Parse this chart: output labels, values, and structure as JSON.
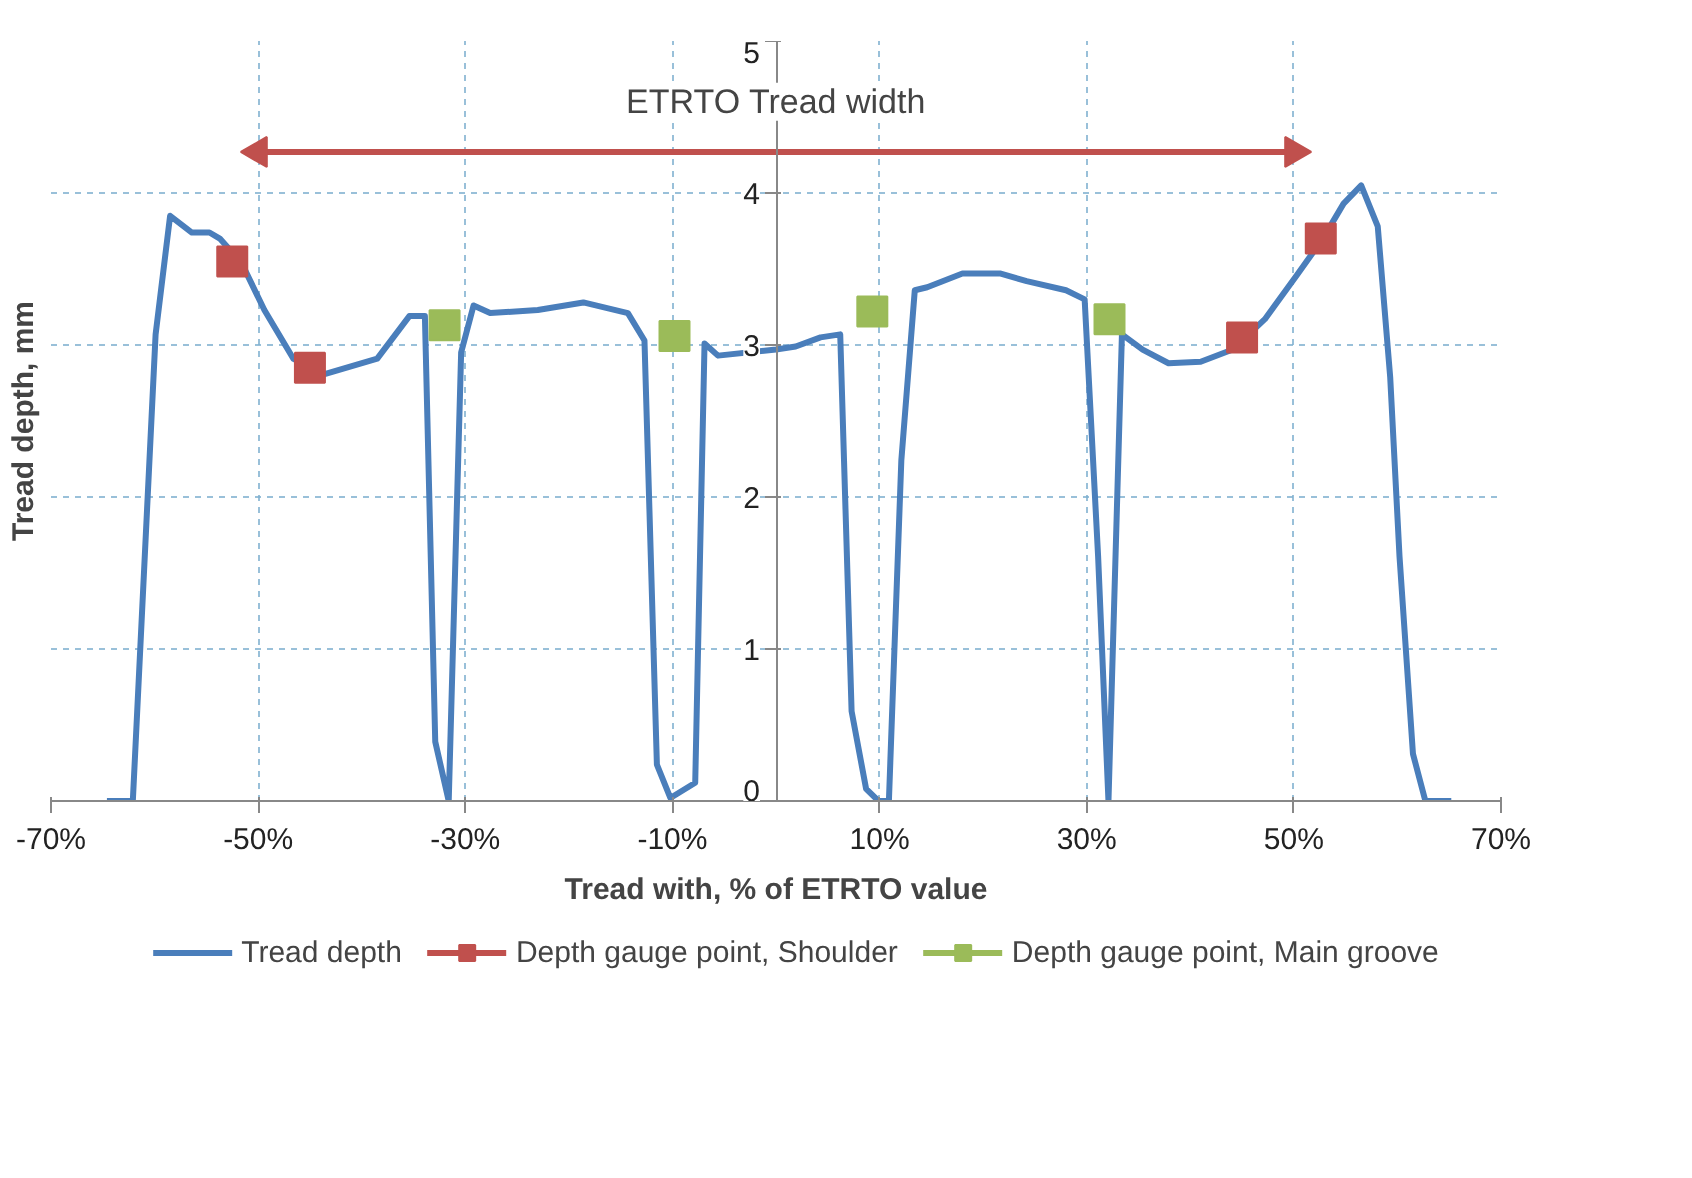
{
  "chart_data": {
    "type": "line",
    "xlabel": "Tread with, % of ETRTO value",
    "ylabel": "Tread depth, mm",
    "xlim": [
      -70,
      70
    ],
    "ylim": [
      0,
      5
    ],
    "xticks": [
      {
        "value": -70,
        "label": "-70%"
      },
      {
        "value": -50,
        "label": "-50%"
      },
      {
        "value": -30,
        "label": "-30%"
      },
      {
        "value": -10,
        "label": "-10%"
      },
      {
        "value": 10,
        "label": "10%"
      },
      {
        "value": 30,
        "label": "30%"
      },
      {
        "value": 50,
        "label": "50%"
      },
      {
        "value": 70,
        "label": "70%"
      }
    ],
    "yticks": [
      0,
      1,
      2,
      3,
      4,
      5
    ],
    "grid": true,
    "legend": "bottom",
    "series": [
      {
        "name": "Tread depth",
        "color": "#4a7ebb",
        "marker": "none",
        "x": [
          -64.6,
          -62.1,
          -59.9,
          -58.5,
          -56.4,
          -54.7,
          -53.7,
          -51.6,
          -49.4,
          -46.6,
          -43.5,
          -38.5,
          -35.4,
          -33.9,
          -32.9,
          -31.6,
          -30.4,
          -29.2,
          -27.6,
          -23.0,
          -18.6,
          -14.3,
          -12.7,
          -11.5,
          -10.2,
          -7.8,
          -6.9,
          -5.6,
          0,
          1.9,
          4.3,
          6.2,
          7.3,
          8.7,
          9.9,
          10.9,
          12.1,
          13.4,
          14.6,
          18.0,
          21.7,
          24.2,
          28.0,
          29.8,
          31.1,
          32.1,
          33.4,
          35.4,
          37.9,
          41.0,
          44.1,
          47.2,
          50.3,
          52.8,
          54.8,
          56.5,
          58.1,
          59.3,
          60.2,
          61.5,
          62.7,
          65.2
        ],
        "values": [
          0,
          0,
          3.07,
          3.85,
          3.74,
          3.74,
          3.7,
          3.54,
          3.23,
          2.91,
          2.81,
          2.91,
          3.19,
          3.19,
          0.39,
          0,
          2.95,
          3.26,
          3.21,
          3.23,
          3.28,
          3.21,
          3.03,
          0.24,
          0.02,
          0.12,
          3.01,
          2.93,
          2.97,
          2.99,
          3.05,
          3.07,
          0.59,
          0.08,
          0,
          0,
          2.24,
          3.36,
          3.38,
          3.47,
          3.47,
          3.42,
          3.36,
          3.3,
          1.61,
          0,
          3.07,
          2.97,
          2.88,
          2.89,
          2.97,
          3.17,
          3.46,
          3.7,
          3.93,
          4.05,
          3.78,
          2.79,
          1.61,
          0.31,
          0,
          0
        ]
      },
      {
        "name": "Depth gauge point, Shoulder",
        "type": "scatter",
        "color": "#c0504d",
        "marker": "square",
        "x": [
          -52.5,
          -45.0,
          45.0,
          52.6
        ],
        "values": [
          3.55,
          2.85,
          3.05,
          3.7
        ]
      },
      {
        "name": "Depth gauge point, Main groove",
        "type": "scatter",
        "color": "#9bbb59",
        "marker": "square",
        "x": [
          -32.0,
          -9.8,
          9.3,
          32.2
        ],
        "values": [
          3.13,
          3.06,
          3.22,
          3.17
        ]
      },
      {
        "type": "line",
        "color": "#c0504d",
        "marker": "triangle",
        "x": [
          -50,
          50
        ],
        "values": [
          4.27,
          4.27
        ]
      }
    ],
    "annotations": [
      "ETRTO Tread width"
    ]
  }
}
